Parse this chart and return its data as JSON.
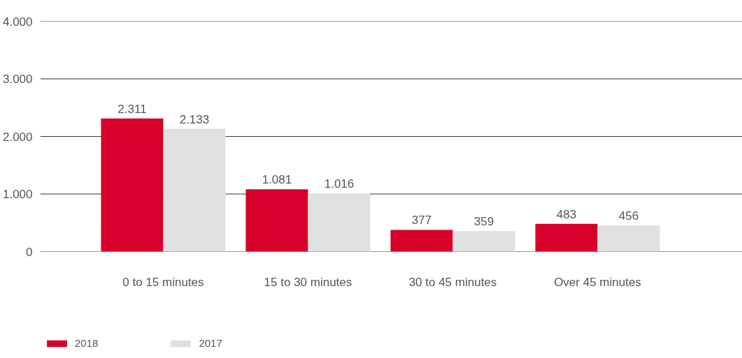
{
  "chart_data": {
    "type": "bar",
    "categories": [
      "0 to 15 minutes",
      "15 to 30 minutes",
      "30 to 45 minutes",
      "Over 45 minutes"
    ],
    "series": [
      {
        "name": "2018",
        "color": "#d7002a",
        "values": [
          2311,
          1081,
          377,
          483
        ],
        "value_labels": [
          "2.311",
          "1.081",
          "377",
          "483"
        ]
      },
      {
        "name": "2017",
        "color": "#e1e1e1",
        "values": [
          2133,
          1016,
          359,
          456
        ],
        "value_labels": [
          "2.133",
          "1.016",
          "359",
          "456"
        ]
      }
    ],
    "ylim": [
      0,
      4000
    ],
    "yticks": [
      {
        "value": 0,
        "label": "0"
      },
      {
        "value": 1000,
        "label": "1.000"
      },
      {
        "value": 2000,
        "label": "2.000"
      },
      {
        "value": 3000,
        "label": "3.000"
      },
      {
        "value": 4000,
        "label": "4.000"
      }
    ],
    "grid": "y",
    "legend": "bottom left"
  }
}
